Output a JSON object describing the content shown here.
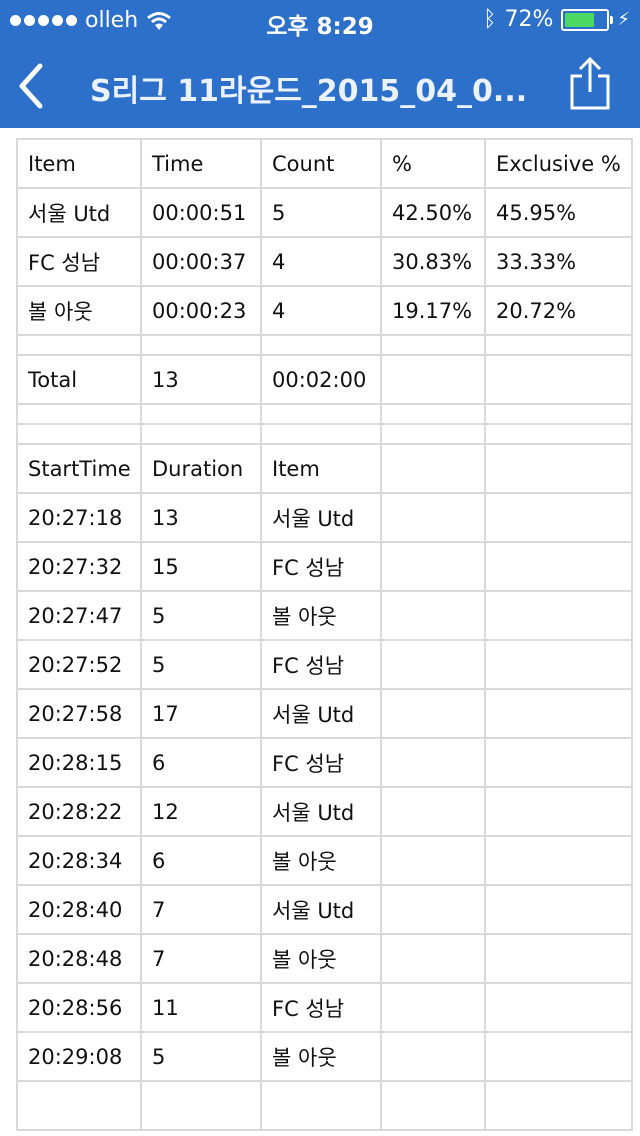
{
  "status_bar": {
    "carrier": "olleh",
    "time": "오후 8:29",
    "battery_percent": "72%",
    "battery_level": 0.72,
    "battery_color": "#4cd964"
  },
  "nav": {
    "title": "S리그 11라운드_2015_04_0...",
    "back_icon": "chevron-left-icon",
    "share_icon": "share-icon"
  },
  "summary": {
    "headers": [
      "Item",
      "Time",
      "Count",
      "%",
      "Exclusive %"
    ],
    "rows": [
      [
        "서울 Utd",
        "00:00:51",
        "5",
        "42.50%",
        "45.95%"
      ],
      [
        "FC 성남",
        "00:00:37",
        "4",
        "30.83%",
        "33.33%"
      ],
      [
        "볼 아웃",
        "00:00:23",
        "4",
        "19.17%",
        "20.72%"
      ]
    ],
    "total": [
      "Total",
      "13",
      "00:02:00",
      "",
      ""
    ]
  },
  "log": {
    "headers": [
      "StartTime",
      "Duration",
      "Item",
      "",
      ""
    ],
    "rows": [
      [
        "20:27:18",
        "13",
        "서울 Utd",
        "",
        ""
      ],
      [
        "20:27:32",
        "15",
        "FC 성남",
        "",
        ""
      ],
      [
        "20:27:47",
        "5",
        "볼 아웃",
        "",
        ""
      ],
      [
        "20:27:52",
        "5",
        "FC 성남",
        "",
        ""
      ],
      [
        "20:27:58",
        "17",
        "서울 Utd",
        "",
        ""
      ],
      [
        "20:28:15",
        "6",
        "FC 성남",
        "",
        ""
      ],
      [
        "20:28:22",
        "12",
        "서울 Utd",
        "",
        ""
      ],
      [
        "20:28:34",
        "6",
        "볼 아웃",
        "",
        ""
      ],
      [
        "20:28:40",
        "7",
        "서울 Utd",
        "",
        ""
      ],
      [
        "20:28:48",
        "7",
        "볼 아웃",
        "",
        ""
      ],
      [
        "20:28:56",
        "11",
        "FC 성남",
        "",
        ""
      ],
      [
        "20:29:08",
        "5",
        "볼 아웃",
        "",
        ""
      ],
      [
        "",
        "",
        "",
        "",
        ""
      ]
    ]
  }
}
